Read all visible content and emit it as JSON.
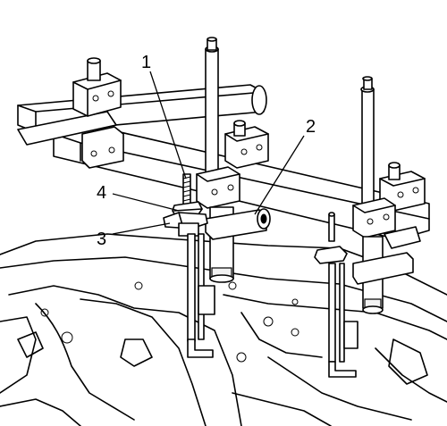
{
  "diagram": {
    "callouts": [
      {
        "id": "1",
        "label": "1"
      },
      {
        "id": "2",
        "label": "2"
      },
      {
        "id": "3",
        "label": "3"
      },
      {
        "id": "4",
        "label": "4"
      }
    ]
  }
}
